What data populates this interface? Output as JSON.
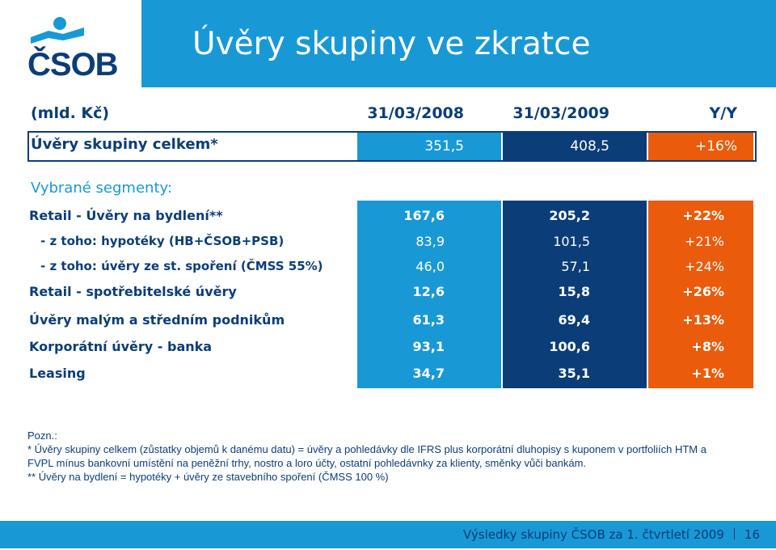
{
  "slide": {
    "title": "Úvěry skupiny ve zkratce",
    "logo_text": "ČSOB"
  },
  "table": {
    "unit_label": "(mld. Kč)",
    "columns": [
      "31/03/2008",
      "31/03/2009",
      "Y/Y"
    ],
    "total": {
      "label": "Úvěry skupiny celkem*",
      "values": [
        "351,5",
        "408,5",
        "+16%"
      ]
    },
    "segments_label": "Vybrané segmenty:",
    "rows": [
      {
        "label": "Retail - Úvěry na bydlení**",
        "values": [
          "167,6",
          "205,2",
          "+22%"
        ]
      },
      {
        "label": "- z toho: hypotéky (HB+ČSOB+PSB)",
        "values": [
          "83,9",
          "101,5",
          "+21%"
        ]
      },
      {
        "label": "- z toho: úvěry ze st. spoření (ČMSS 55%)",
        "values": [
          "46,0",
          "57,1",
          "+24%"
        ]
      },
      {
        "label": "Retail - spotřebitelské úvěry",
        "values": [
          "12,6",
          "15,8",
          "+26%"
        ]
      },
      {
        "label": "Úvěry malým a středním podnikům",
        "values": [
          "61,3",
          "69,4",
          "+13%"
        ]
      },
      {
        "label": "Korporátní úvěry - banka",
        "values": [
          "93,1",
          "100,6",
          "+8%"
        ]
      },
      {
        "label": "Leasing",
        "values": [
          "34,7",
          "35,1",
          "+1%"
        ]
      }
    ]
  },
  "notes": {
    "heading": "Pozn.:",
    "lines": [
      "* Úvěry skupiny celkem (zůstatky objemů k danému datu) = úvěry a pohledávky dle IFRS plus korporátní dluhopisy s kuponem v portfoliích HTM a",
      "FVPL mínus bankovní umístění na peněžní trhy, nostro a loro účty, ostatní pohledávnky za klienty, směnky vůči bankám.",
      "**  Úvěry na bydlení = hypotéky + úvěry ze stavebního spoření (ČMSS 100 %)"
    ]
  },
  "footer": {
    "text": "Výsledky skupiny ČSOB za 1. čtvrtletí 2009",
    "page": "16"
  },
  "colors": {
    "light_blue": "#1899d6",
    "navy": "#0b3d78",
    "orange": "#ea5b0c"
  }
}
